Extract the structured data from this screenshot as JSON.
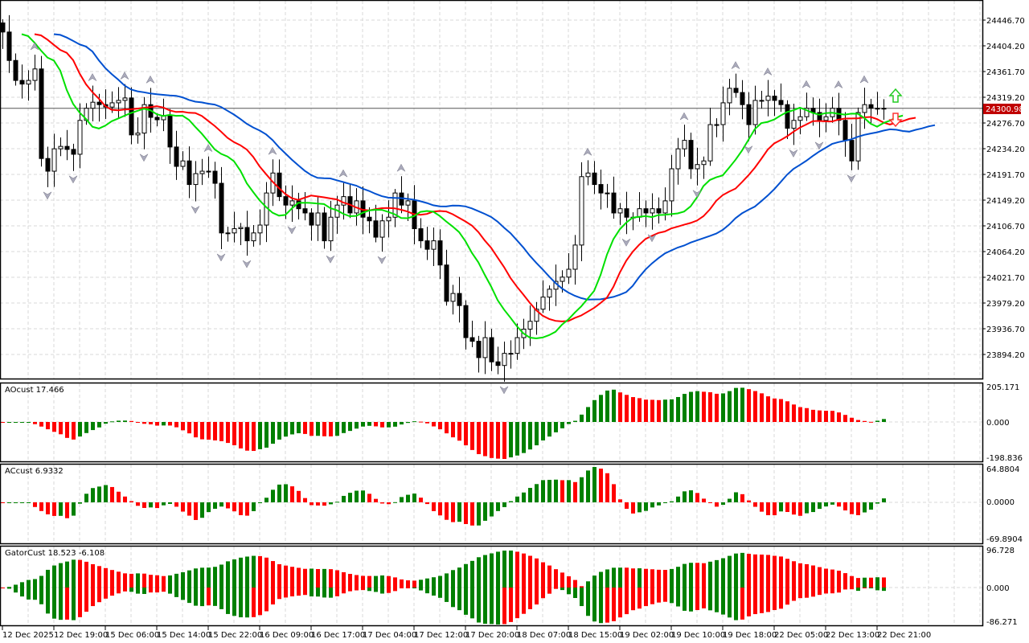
{
  "symbol_last_price": "24300.98",
  "colors": {
    "bull_bar": "#008000",
    "bear_bar": "#ff0000",
    "jaw": "#0050d0",
    "teeth": "#ff0000",
    "lips": "#00e000",
    "price_tag": "#c00000",
    "grid": "#d8d8d8"
  },
  "chart_data": [
    {
      "type": "candlestick",
      "pane": "main",
      "price_axis_labels": [
        "24446.70",
        "24404.20",
        "24361.70",
        "24319.20",
        "24276.70",
        "24234.20",
        "24191.70",
        "24149.20",
        "24106.70",
        "24064.20",
        "24021.70",
        "23979.20",
        "23936.70",
        "23894.20"
      ],
      "price_axis_max": 24446.7,
      "price_axis_step": 42.5,
      "current_price": 24300.98,
      "closes": [
        24427,
        24380,
        24347,
        24341,
        24347,
        24366,
        24218,
        24197,
        24234,
        24238,
        24233,
        24225,
        24281,
        24301,
        24311,
        24307,
        24303,
        24310,
        24314,
        24318,
        24257,
        24260,
        24307,
        24286,
        24282,
        24289,
        24237,
        24205,
        24214,
        24175,
        24193,
        24197,
        24197,
        24177,
        24095,
        24095,
        24102,
        24104,
        24082,
        24095,
        24108,
        24161,
        24194,
        24155,
        24141,
        24148,
        24135,
        24128,
        24108,
        24128,
        24082,
        24121,
        24141,
        24155,
        24128,
        24148,
        24121,
        24115,
        24088,
        24115,
        24121,
        24161,
        24141,
        24148,
        24102,
        24082,
        24068,
        24082,
        24042,
        23982,
        23995,
        23975,
        23922,
        23916,
        23889,
        23922,
        23882,
        23876,
        23896,
        23896,
        23922,
        23936,
        23949,
        23969,
        23989,
        24002,
        24015,
        24022,
        24035,
        24075,
        24188,
        24194,
        24175,
        24161,
        24161,
        24128,
        24135,
        24121,
        24121,
        24135,
        24128,
        24135,
        24128,
        24148,
        24201,
        24234,
        24248,
        24201,
        24208,
        24214,
        24274,
        24274,
        24310,
        24334,
        24327,
        24307,
        24274,
        24314,
        24314,
        24321,
        24314,
        24307,
        24268,
        24281,
        24287,
        24301,
        24294,
        24281,
        24287,
        24301,
        24281,
        24248,
        24214,
        24294,
        24307,
        24301,
        24301,
        24301
      ],
      "overlays": [
        "Alligator jaw (blue)",
        "Alligator teeth (red)",
        "Alligator lips (green)",
        "Fractals"
      ]
    },
    {
      "type": "bar",
      "pane": "AOcust",
      "label": "AOcust 17.466",
      "axis_labels": [
        "205.171",
        "0.000",
        "-198.836"
      ],
      "ylim": [
        -198.836,
        205.171
      ]
    },
    {
      "type": "bar",
      "pane": "ACcust",
      "label": "ACcust 6.9332",
      "axis_labels": [
        "64.8804",
        "0.0000",
        "-69.8904"
      ],
      "ylim": [
        -69.8904,
        64.8804
      ]
    },
    {
      "type": "bar",
      "pane": "GatorCust",
      "label": "GatorCust 18.523 -6.108",
      "axis_labels": [
        "96.728",
        "0.000",
        "-86.271"
      ],
      "ylim": [
        -86.271,
        96.728
      ]
    }
  ],
  "time_axis": [
    "12 Dec 2025",
    "12 Dec 19:00",
    "15 Dec 06:00",
    "15 Dec 14:00",
    "15 Dec 22:00",
    "16 Dec 09:00",
    "16 Dec 17:00",
    "17 Dec 04:00",
    "17 Dec 12:00",
    "17 Dec 20:00",
    "18 Dec 07:00",
    "18 Dec 15:00",
    "19 Dec 02:00",
    "19 Dec 10:00",
    "19 Dec 18:00",
    "22 Dec 05:00",
    "22 Dec 13:00",
    "22 Dec 21:00"
  ]
}
